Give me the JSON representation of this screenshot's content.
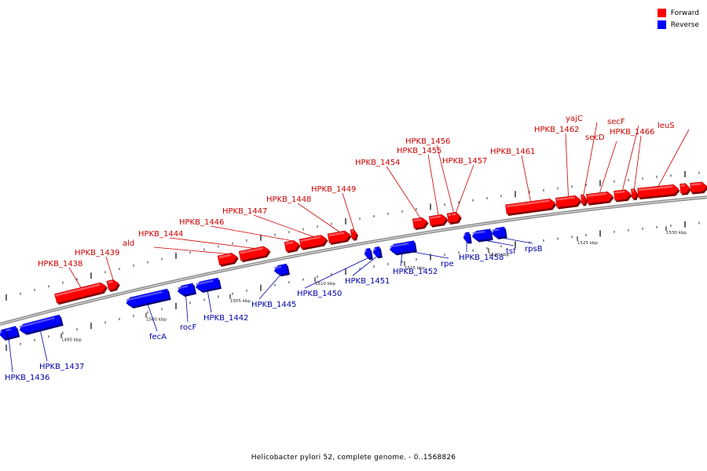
{
  "title": "Helicobacter pylori 52, complete genome. - 0..1568826",
  "legend": [
    {
      "label": "Forward",
      "color": "#ff0000"
    },
    {
      "label": "Reverse",
      "color": "#0000ff"
    }
  ],
  "colors": {
    "forward": "#ff0000",
    "reverse": "#0000ff",
    "forward_label": "#cc0000",
    "reverse_label": "#0000aa"
  },
  "kbp_ticks": [
    "1495 kbp",
    "1500 kbp",
    "1505 kbp",
    "1510 kbp",
    "1515 kbp",
    "1520 kbp",
    "1525 kbp",
    "1530 kbp"
  ],
  "genes": [
    {
      "name": "HPKB_1436",
      "strand": "reverse"
    },
    {
      "name": "HPKB_1437",
      "strand": "reverse"
    },
    {
      "name": "HPKB_1438",
      "strand": "forward"
    },
    {
      "name": "HPKB_1439",
      "strand": "forward"
    },
    {
      "name": "fecA",
      "strand": "reverse"
    },
    {
      "name": "rocF",
      "strand": "reverse"
    },
    {
      "name": "HPKB_1442",
      "strand": "reverse"
    },
    {
      "name": "ald",
      "strand": "forward"
    },
    {
      "name": "HPKB_1444",
      "strand": "forward"
    },
    {
      "name": "HPKB_1445",
      "strand": "reverse"
    },
    {
      "name": "HPKB_1446",
      "strand": "forward"
    },
    {
      "name": "HPKB_1447",
      "strand": "forward"
    },
    {
      "name": "HPKB_1448",
      "strand": "forward"
    },
    {
      "name": "HPKB_1449",
      "strand": "forward"
    },
    {
      "name": "HPKB_1450",
      "strand": "reverse"
    },
    {
      "name": "HPKB_1451",
      "strand": "reverse"
    },
    {
      "name": "HPKB_1452",
      "strand": "reverse"
    },
    {
      "name": "rpe",
      "strand": "reverse"
    },
    {
      "name": "HPKB_1454",
      "strand": "forward"
    },
    {
      "name": "HPKB_1455",
      "strand": "forward"
    },
    {
      "name": "HPKB_1456",
      "strand": "forward"
    },
    {
      "name": "HPKB_1457",
      "strand": "forward"
    },
    {
      "name": "HPKB_1458",
      "strand": "reverse"
    },
    {
      "name": "tsf",
      "strand": "reverse"
    },
    {
      "name": "rpsB",
      "strand": "reverse"
    },
    {
      "name": "HPKB_1461",
      "strand": "forward"
    },
    {
      "name": "HPKB_1462",
      "strand": "forward"
    },
    {
      "name": "yajC",
      "strand": "forward"
    },
    {
      "name": "secD",
      "strand": "forward"
    },
    {
      "name": "secF",
      "strand": "forward"
    },
    {
      "name": "HPKB_1466",
      "strand": "forward"
    },
    {
      "name": "leuS",
      "strand": "forward"
    }
  ]
}
